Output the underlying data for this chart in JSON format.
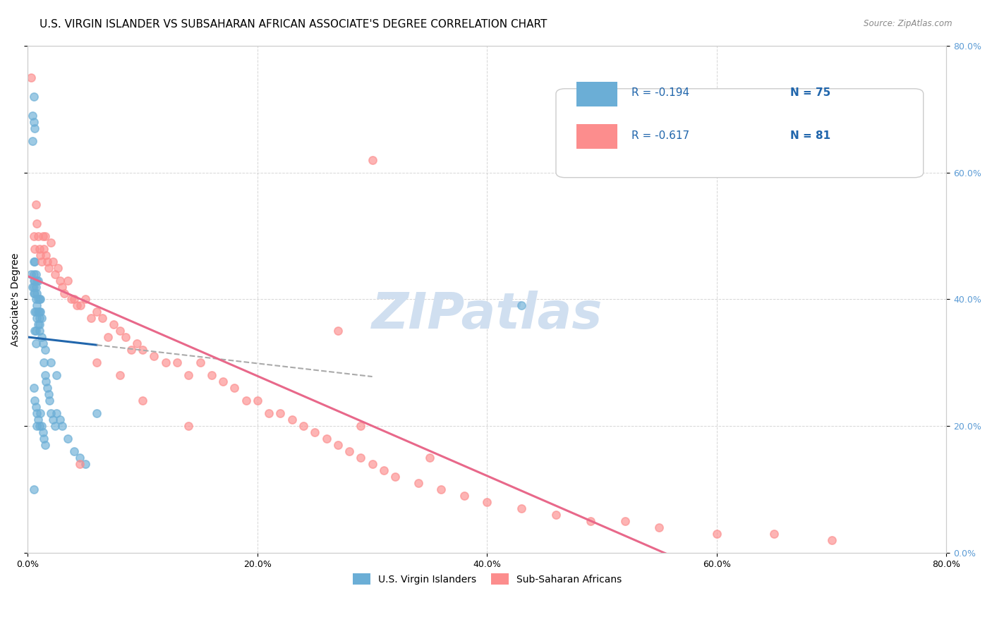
{
  "title": "U.S. VIRGIN ISLANDER VS SUBSAHARAN AFRICAN ASSOCIATE'S DEGREE CORRELATION CHART",
  "source": "Source: ZipAtlas.com",
  "ylabel": "Associate's Degree",
  "xlim": [
    0.0,
    0.8
  ],
  "ylim": [
    0.0,
    0.8
  ],
  "yticks": [
    0.0,
    0.2,
    0.4,
    0.6,
    0.8
  ],
  "xticks": [
    0.0,
    0.2,
    0.4,
    0.6,
    0.8
  ],
  "legend_r1": "-0.194",
  "legend_n1": "75",
  "legend_r2": "-0.617",
  "legend_n2": "81",
  "color_blue": "#6baed6",
  "color_pink": "#fc8d8d",
  "color_blue_line": "#2166ac",
  "color_pink_line": "#e8688a",
  "color_gray_line": "#aaaaaa",
  "watermark": "ZIPatlas",
  "blue_scatter_x": [
    0.003,
    0.004,
    0.004,
    0.004,
    0.005,
    0.005,
    0.005,
    0.005,
    0.005,
    0.005,
    0.005,
    0.005,
    0.006,
    0.006,
    0.006,
    0.006,
    0.006,
    0.006,
    0.006,
    0.007,
    0.007,
    0.007,
    0.007,
    0.007,
    0.007,
    0.007,
    0.008,
    0.008,
    0.008,
    0.008,
    0.008,
    0.008,
    0.009,
    0.009,
    0.009,
    0.009,
    0.009,
    0.01,
    0.01,
    0.01,
    0.01,
    0.01,
    0.011,
    0.011,
    0.011,
    0.012,
    0.012,
    0.013,
    0.013,
    0.014,
    0.014,
    0.015,
    0.015,
    0.016,
    0.017,
    0.018,
    0.019,
    0.02,
    0.022,
    0.024,
    0.025,
    0.028,
    0.03,
    0.035,
    0.04,
    0.045,
    0.05,
    0.06,
    0.01,
    0.012,
    0.015,
    0.02,
    0.025,
    0.43,
    0.005
  ],
  "blue_scatter_y": [
    0.44,
    0.42,
    0.69,
    0.65,
    0.72,
    0.68,
    0.46,
    0.43,
    0.44,
    0.42,
    0.41,
    0.26,
    0.46,
    0.43,
    0.41,
    0.38,
    0.35,
    0.24,
    0.67,
    0.44,
    0.42,
    0.4,
    0.38,
    0.35,
    0.33,
    0.23,
    0.43,
    0.41,
    0.39,
    0.37,
    0.22,
    0.2,
    0.43,
    0.4,
    0.38,
    0.36,
    0.21,
    0.4,
    0.38,
    0.37,
    0.35,
    0.2,
    0.4,
    0.38,
    0.22,
    0.37,
    0.2,
    0.33,
    0.19,
    0.3,
    0.18,
    0.28,
    0.17,
    0.27,
    0.26,
    0.25,
    0.24,
    0.22,
    0.21,
    0.2,
    0.22,
    0.21,
    0.2,
    0.18,
    0.16,
    0.15,
    0.14,
    0.22,
    0.36,
    0.34,
    0.32,
    0.3,
    0.28,
    0.39,
    0.1
  ],
  "pink_scatter_x": [
    0.003,
    0.005,
    0.006,
    0.007,
    0.008,
    0.009,
    0.01,
    0.011,
    0.012,
    0.013,
    0.014,
    0.015,
    0.016,
    0.017,
    0.018,
    0.02,
    0.022,
    0.024,
    0.026,
    0.028,
    0.03,
    0.032,
    0.035,
    0.038,
    0.04,
    0.043,
    0.046,
    0.05,
    0.055,
    0.06,
    0.065,
    0.07,
    0.075,
    0.08,
    0.085,
    0.09,
    0.095,
    0.1,
    0.11,
    0.12,
    0.13,
    0.14,
    0.15,
    0.16,
    0.17,
    0.18,
    0.19,
    0.2,
    0.21,
    0.22,
    0.23,
    0.24,
    0.25,
    0.26,
    0.27,
    0.28,
    0.29,
    0.3,
    0.31,
    0.32,
    0.34,
    0.36,
    0.38,
    0.4,
    0.43,
    0.46,
    0.49,
    0.52,
    0.55,
    0.6,
    0.65,
    0.7,
    0.29,
    0.35,
    0.27,
    0.14,
    0.1,
    0.08,
    0.06,
    0.045,
    0.3
  ],
  "pink_scatter_y": [
    0.75,
    0.5,
    0.48,
    0.55,
    0.52,
    0.5,
    0.48,
    0.47,
    0.46,
    0.5,
    0.48,
    0.5,
    0.47,
    0.46,
    0.45,
    0.49,
    0.46,
    0.44,
    0.45,
    0.43,
    0.42,
    0.41,
    0.43,
    0.4,
    0.4,
    0.39,
    0.39,
    0.4,
    0.37,
    0.38,
    0.37,
    0.34,
    0.36,
    0.35,
    0.34,
    0.32,
    0.33,
    0.32,
    0.31,
    0.3,
    0.3,
    0.28,
    0.3,
    0.28,
    0.27,
    0.26,
    0.24,
    0.24,
    0.22,
    0.22,
    0.21,
    0.2,
    0.19,
    0.18,
    0.17,
    0.16,
    0.15,
    0.14,
    0.13,
    0.12,
    0.11,
    0.1,
    0.09,
    0.08,
    0.07,
    0.06,
    0.05,
    0.05,
    0.04,
    0.03,
    0.03,
    0.02,
    0.2,
    0.15,
    0.35,
    0.2,
    0.24,
    0.28,
    0.3,
    0.14,
    0.62
  ],
  "background_color": "#ffffff",
  "grid_color": "#cccccc",
  "title_fontsize": 11,
  "axis_label_fontsize": 10,
  "tick_fontsize": 9,
  "watermark_color": "#d0dff0",
  "watermark_fontsize": 52
}
